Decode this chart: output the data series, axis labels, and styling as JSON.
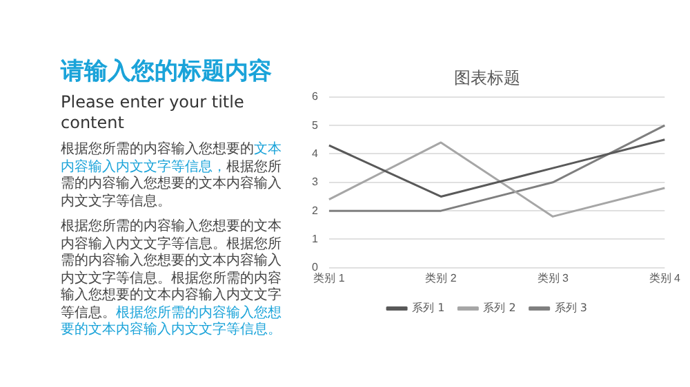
{
  "chart_data": [
    {
      "type": "other",
      "title": "请输入您的标题内容",
      "subtitle": "Please enter your title content",
      "annotations": [
        "根据您所需的内容输入您想要的",
        "文本内容输入内文文字等信息，",
        "根据您所需的内容输入您想要的文本内容输入内文文字等信息。",
        "根据您所需的内容输入您想要的文本内容输入内文文字等信息。根据您所需的内容输入您想要的文本内容输入内文文字等信息。根据您所需的内容输入您想要的文本内容输入内文文字等信息。",
        "根据您所需的内容输入您想要的文本内容输入内文文字等信息。"
      ]
    },
    {
      "type": "line",
      "title": "图表标题",
      "categories": [
        "类别 1",
        "类别 2",
        "类别 3",
        "类别 4"
      ],
      "series": [
        {
          "name": "系列 1",
          "color": "#595959",
          "values": [
            4.3,
            2.5,
            3.5,
            4.5
          ]
        },
        {
          "name": "系列 2",
          "color": "#a6a6a6",
          "values": [
            2.4,
            4.4,
            1.8,
            2.8
          ]
        },
        {
          "name": "系列 3",
          "color": "#7f7f7f",
          "values": [
            2,
            2,
            3,
            5
          ]
        }
      ],
      "ylim": [
        0,
        6
      ],
      "yticks": [
        0,
        1,
        2,
        3,
        4,
        5,
        6
      ],
      "grid": "y",
      "legend": "bottom",
      "marker": "none"
    }
  ]
}
